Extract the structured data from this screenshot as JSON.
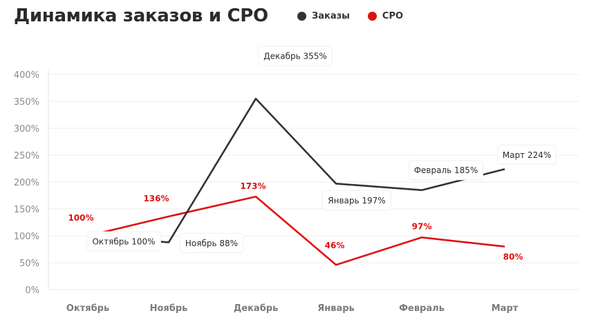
{
  "header": {
    "title": "Динамика заказов и CPO"
  },
  "legend": [
    {
      "label": "Заказы",
      "color": "#333333"
    },
    {
      "label": "CPO",
      "color": "#e01010"
    }
  ],
  "chart_data": {
    "type": "line",
    "title": "Динамика заказов и CPO",
    "categories": [
      "Октябрь",
      "Ноябрь",
      "Декабрь",
      "Январь",
      "Февраль",
      "Март"
    ],
    "y_ticks": [
      "0%",
      "50%",
      "100%",
      "150%",
      "200%",
      "250%",
      "300%",
      "350%",
      "400%"
    ],
    "ylim": [
      0,
      400
    ],
    "grid": true,
    "legend_position": "top",
    "series": [
      {
        "name": "Заказы",
        "color": "#333333",
        "values": [
          100,
          88,
          355,
          197,
          185,
          224
        ],
        "labels": [
          "Октябрь 100%",
          "Ноябрь 88%",
          "Декабрь 355%",
          "Январь 197%",
          "Февраль 185%",
          "Март 224%"
        ]
      },
      {
        "name": "CPO",
        "color": "#e01010",
        "values": [
          100,
          136,
          173,
          46,
          97,
          80
        ],
        "labels": [
          "100%",
          "136%",
          "173%",
          "46%",
          "97%",
          "80%"
        ]
      }
    ]
  }
}
